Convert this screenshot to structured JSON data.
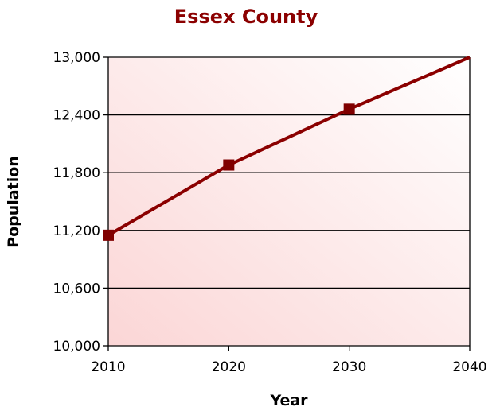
{
  "chart_data": {
    "type": "line",
    "title": "Essex County",
    "xlabel": "Year",
    "ylabel": "Population",
    "x": [
      2010,
      2020,
      2030,
      2040
    ],
    "series": [
      {
        "values": [
          11150,
          11880,
          12460,
          13000
        ],
        "markers": [
          true,
          true,
          true,
          false
        ]
      }
    ],
    "xlim": [
      2010,
      2040
    ],
    "ylim": [
      10000,
      13000
    ],
    "xticks": [
      2010,
      2020,
      2030,
      2040
    ],
    "xtick_labels": [
      "2010",
      "2020",
      "2030",
      "2040"
    ],
    "yticks": [
      10000,
      10600,
      11200,
      11800,
      12400,
      13000
    ],
    "ytick_labels": [
      "10,000",
      "10,600",
      "11,200",
      "11,800",
      "12,400",
      "13,000"
    ],
    "grid": "horizontal",
    "legend": "none",
    "colors": {
      "line": "#8b0000",
      "marker": "#800000",
      "title": "#8b0000",
      "plot_bg_light": "#ffffff",
      "plot_bg_tint": "#fbd6d6",
      "grid": "#000000"
    }
  }
}
